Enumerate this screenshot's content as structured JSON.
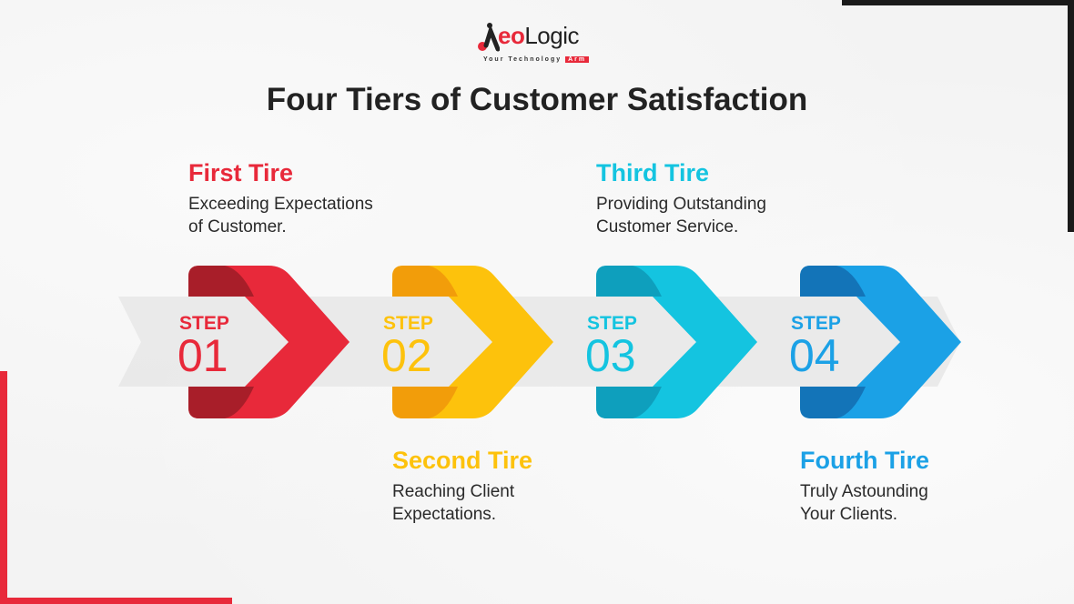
{
  "logo": {
    "brand_prefix": "A",
    "brand_eo": "eo",
    "brand_logic": "Logic",
    "tagline": "Your Technology",
    "tagline_badge": "Arm"
  },
  "title": "Four Tiers of Customer Satisfaction",
  "colors": {
    "red": "#e8293a",
    "yellow": "#fdc20c",
    "cyan": "#14c4e0",
    "blue": "#1ba1e6"
  },
  "steps": [
    {
      "label": "STEP",
      "number": "01",
      "tier_title": "First Tire",
      "line1": "Exceeding Expectations",
      "line2": "of Customer.",
      "color": "#e8293a",
      "dark": "#a81e29"
    },
    {
      "label": "STEP",
      "number": "02",
      "tier_title": "Second Tire",
      "line1": "Reaching Client",
      "line2": "Expectations.",
      "color": "#fdc20c",
      "dark": "#f29d0a"
    },
    {
      "label": "STEP",
      "number": "03",
      "tier_title": "Third Tire",
      "line1": "Providing Outstanding",
      "line2": "Customer Service.",
      "color": "#14c4e0",
      "dark": "#0e9fbd"
    },
    {
      "label": "STEP",
      "number": "04",
      "tier_title": "Fourth Tire",
      "line1": "Truly Astounding",
      "line2": "Your Clients.",
      "color": "#1ba1e6",
      "dark": "#1374b8"
    }
  ]
}
